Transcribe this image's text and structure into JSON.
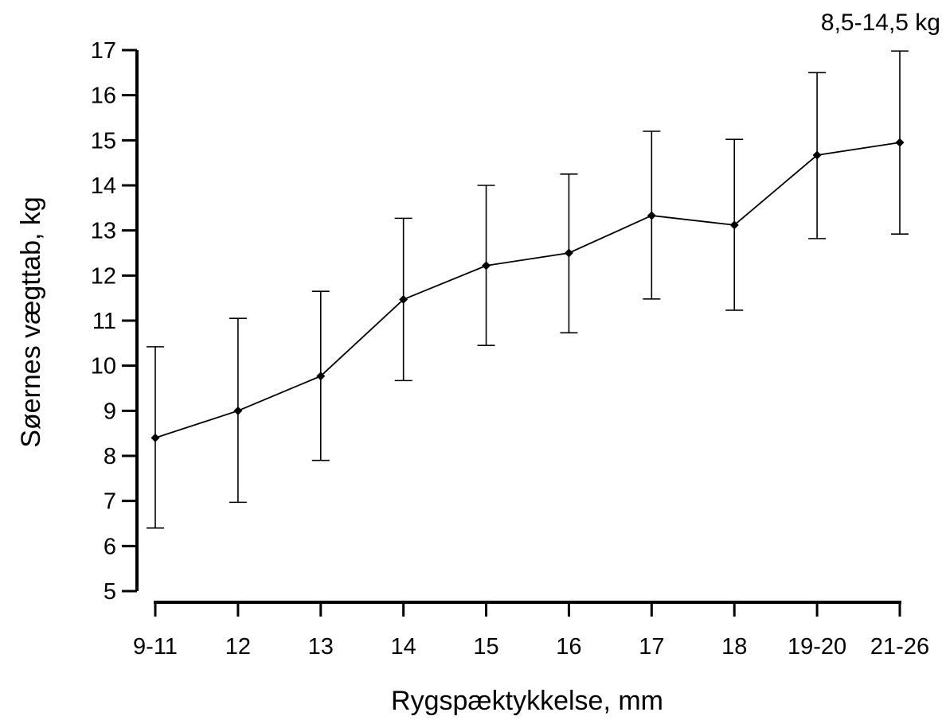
{
  "chart_data": {
    "type": "line",
    "title": "",
    "annotation": "8,5-14,5 kg",
    "xlabel": "Rygspæktykkelse, mm",
    "ylabel": "Søernes vægttab, kg",
    "categories": [
      "9-11",
      "12",
      "13",
      "14",
      "15",
      "16",
      "17",
      "18",
      "19-20",
      "21-26"
    ],
    "ylim": [
      5,
      17
    ],
    "yticks": [
      5,
      6,
      7,
      8,
      9,
      10,
      11,
      12,
      13,
      14,
      15,
      16,
      17
    ],
    "grid": false,
    "legend": "none",
    "series": [
      {
        "values": [
          8.4,
          9.0,
          9.77,
          11.47,
          12.22,
          12.5,
          13.33,
          13.12,
          14.67,
          14.95
        ],
        "error_low": [
          6.4,
          6.97,
          7.9,
          9.67,
          10.45,
          10.73,
          11.48,
          11.23,
          12.82,
          12.92
        ],
        "error_high": [
          10.42,
          11.05,
          11.65,
          13.27,
          14.0,
          14.25,
          15.2,
          15.02,
          16.5,
          16.98
        ],
        "color": "#000000",
        "marker": "diamond"
      }
    ]
  }
}
